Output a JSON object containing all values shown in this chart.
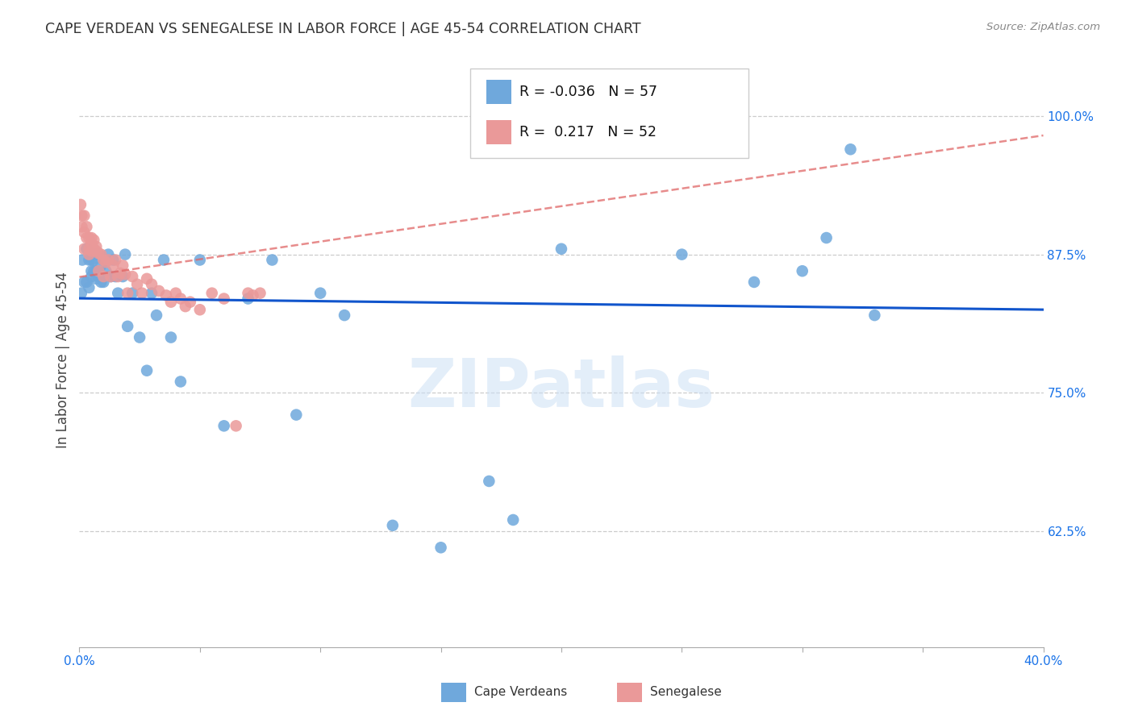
{
  "title": "CAPE VERDEAN VS SENEGALESE IN LABOR FORCE | AGE 45-54 CORRELATION CHART",
  "source": "Source: ZipAtlas.com",
  "ylabel": "In Labor Force | Age 45-54",
  "yticks": [
    0.625,
    0.75,
    0.875,
    1.0
  ],
  "ytick_labels": [
    "62.5%",
    "75.0%",
    "87.5%",
    "100.0%"
  ],
  "xlim": [
    0.0,
    0.4
  ],
  "ylim": [
    0.52,
    1.04
  ],
  "watermark": "ZIPatlas",
  "legend_label1": "Cape Verdeans",
  "legend_label2": "Senegalese",
  "blue_color": "#6fa8dc",
  "pink_color": "#ea9999",
  "blue_line_color": "#1155cc",
  "pink_line_color": "#e06666",
  "R_cv": -0.036,
  "N_cv": 57,
  "R_sen": 0.217,
  "N_sen": 52,
  "cape_verdean_x": [
    0.0008,
    0.0012,
    0.002,
    0.003,
    0.003,
    0.004,
    0.004,
    0.005,
    0.005,
    0.005,
    0.006,
    0.006,
    0.006,
    0.007,
    0.007,
    0.007,
    0.008,
    0.008,
    0.009,
    0.009,
    0.01,
    0.01,
    0.011,
    0.012,
    0.013,
    0.014,
    0.015,
    0.016,
    0.018,
    0.019,
    0.02,
    0.022,
    0.025,
    0.028,
    0.03,
    0.032,
    0.035,
    0.038,
    0.042,
    0.05,
    0.06,
    0.07,
    0.08,
    0.09,
    0.1,
    0.11,
    0.13,
    0.15,
    0.17,
    0.18,
    0.2,
    0.25,
    0.28,
    0.3,
    0.31,
    0.32,
    0.33
  ],
  "cape_verdean_y": [
    0.84,
    0.87,
    0.85,
    0.88,
    0.85,
    0.87,
    0.845,
    0.87,
    0.86,
    0.855,
    0.875,
    0.87,
    0.86,
    0.875,
    0.86,
    0.853,
    0.875,
    0.855,
    0.865,
    0.85,
    0.87,
    0.85,
    0.86,
    0.875,
    0.855,
    0.87,
    0.855,
    0.84,
    0.855,
    0.875,
    0.81,
    0.84,
    0.8,
    0.77,
    0.84,
    0.82,
    0.87,
    0.8,
    0.76,
    0.87,
    0.72,
    0.835,
    0.87,
    0.73,
    0.84,
    0.82,
    0.63,
    0.61,
    0.67,
    0.635,
    0.88,
    0.875,
    0.85,
    0.86,
    0.89,
    0.97,
    0.82
  ],
  "senegalese_x": [
    0.0005,
    0.001,
    0.001,
    0.002,
    0.002,
    0.002,
    0.003,
    0.003,
    0.004,
    0.004,
    0.004,
    0.005,
    0.005,
    0.005,
    0.006,
    0.006,
    0.007,
    0.007,
    0.008,
    0.008,
    0.009,
    0.01,
    0.01,
    0.011,
    0.012,
    0.013,
    0.014,
    0.015,
    0.016,
    0.017,
    0.018,
    0.019,
    0.02,
    0.022,
    0.024,
    0.026,
    0.028,
    0.03,
    0.033,
    0.036,
    0.038,
    0.04,
    0.042,
    0.044,
    0.046,
    0.05,
    0.055,
    0.06,
    0.065,
    0.07,
    0.072,
    0.075
  ],
  "senegalese_y": [
    0.92,
    0.91,
    0.9,
    0.91,
    0.895,
    0.88,
    0.9,
    0.89,
    0.89,
    0.88,
    0.875,
    0.89,
    0.885,
    0.878,
    0.888,
    0.88,
    0.882,
    0.878,
    0.876,
    0.86,
    0.875,
    0.87,
    0.855,
    0.868,
    0.87,
    0.855,
    0.865,
    0.87,
    0.855,
    0.858,
    0.865,
    0.857,
    0.84,
    0.855,
    0.848,
    0.84,
    0.853,
    0.848,
    0.842,
    0.838,
    0.832,
    0.84,
    0.835,
    0.828,
    0.832,
    0.825,
    0.84,
    0.835,
    0.72,
    0.84,
    0.838,
    0.84
  ]
}
